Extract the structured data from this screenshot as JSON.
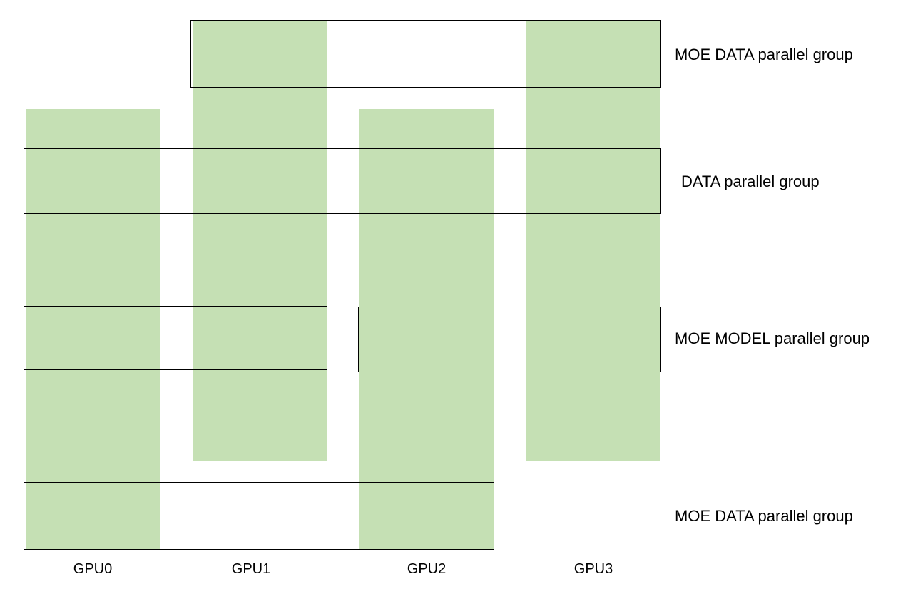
{
  "gpus": [
    {
      "label": "GPU0"
    },
    {
      "label": "GPU1"
    },
    {
      "label": "GPU2"
    },
    {
      "label": "GPU3"
    }
  ],
  "groups": {
    "moe_data_top": {
      "label": "MOE DATA parallel group",
      "members": [
        "GPU1",
        "GPU3"
      ]
    },
    "data": {
      "label": "DATA parallel group",
      "members": [
        "GPU0",
        "GPU1",
        "GPU2",
        "GPU3"
      ]
    },
    "moe_model_left": {
      "members": [
        "GPU0",
        "GPU1"
      ]
    },
    "moe_model_right": {
      "members": [
        "GPU2",
        "GPU3"
      ]
    },
    "moe_model_label": "MOE MODEL parallel group",
    "moe_data_bottom": {
      "label": "MOE DATA parallel group",
      "members": [
        "GPU0",
        "GPU2"
      ]
    }
  },
  "colors": {
    "gpu_fill": "#c5e0b4",
    "box_stroke": "#000000",
    "text": "#000000"
  }
}
